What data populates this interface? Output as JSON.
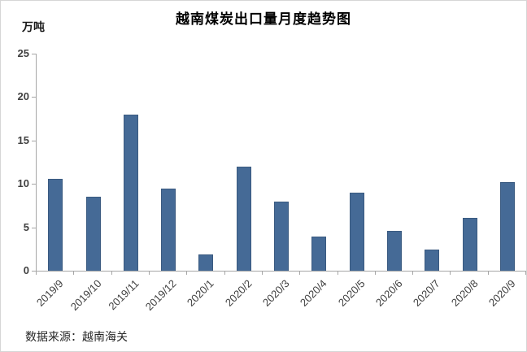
{
  "window": {
    "background": "#ffffff",
    "border_color": "#d6d6d6"
  },
  "chart_data": {
    "type": "bar",
    "title": "越南煤炭出口量月度趋势图",
    "unit_label": "万吨",
    "source_note": "数据来源：越南海关",
    "categories": [
      "2019/9",
      "2019/10",
      "2019/11",
      "2019/12",
      "2020/1",
      "2020/2",
      "2020/3",
      "2020/4",
      "2020/5",
      "2020/6",
      "2020/7",
      "2020/8",
      "2020/9"
    ],
    "values": [
      10.6,
      8.5,
      18,
      9.5,
      1.9,
      12,
      8,
      3.9,
      9,
      4.6,
      2.4,
      6.1,
      10.2
    ],
    "xlabel": "",
    "ylabel": "万吨",
    "ylim": [
      0,
      25
    ],
    "yticks": [
      0,
      5,
      10,
      15,
      20,
      25
    ],
    "grid": false,
    "legend_position": "none",
    "bar_color": "#456a96",
    "bar_border_color": "#3a5a80",
    "axis_color": "#a6a6a6",
    "tick_label_color": "#404040"
  }
}
